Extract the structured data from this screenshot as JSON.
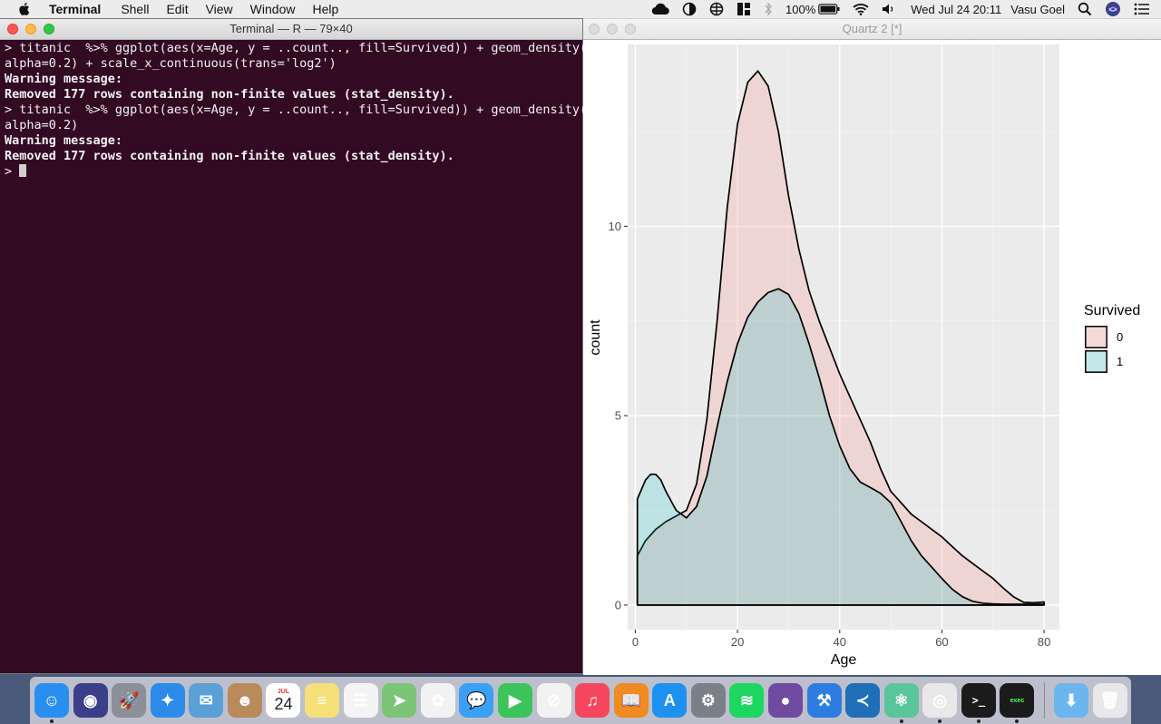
{
  "menubar": {
    "app": "Terminal",
    "items": [
      "Shell",
      "Edit",
      "View",
      "Window",
      "Help"
    ],
    "battery": "100%",
    "datetime": "Wed Jul 24  20:11",
    "user": "Vasu Goel"
  },
  "terminal": {
    "title": "Terminal — R — 79×40",
    "lines": [
      {
        "text": "> titanic  %>% ggplot(aes(x=Age, y = ..count.., fill=Survived)) + geom_density(",
        "bold": false
      },
      {
        "text": "alpha=0.2) + scale_x_continuous(trans='log2')",
        "bold": false
      },
      {
        "text": "Warning message:",
        "bold": true
      },
      {
        "text": "Removed 177 rows containing non-finite values (stat_density).",
        "bold": true
      },
      {
        "text": "> titanic  %>% ggplot(aes(x=Age, y = ..count.., fill=Survived)) + geom_density(",
        "bold": false
      },
      {
        "text": "alpha=0.2)",
        "bold": false
      },
      {
        "text": "Warning message:",
        "bold": true
      },
      {
        "text": "Removed 177 rows containing non-finite values (stat_density).",
        "bold": true
      },
      {
        "text": "> ",
        "bold": false
      }
    ]
  },
  "quartz": {
    "title": "Quartz 2 [*]"
  },
  "chart_data": {
    "type": "area",
    "xlabel": "Age",
    "ylabel": "count",
    "xlim": [
      -1.5,
      83
    ],
    "ylim": [
      -0.65,
      14.8
    ],
    "xticks": [
      0,
      20,
      40,
      60,
      80
    ],
    "yticks": [
      0,
      5,
      10
    ],
    "grid": true,
    "legend_title": "Survived",
    "legend_position": "right",
    "series": [
      {
        "name": "0",
        "color": "#f8766d",
        "x": [
          0.4,
          2,
          4,
          6,
          8,
          10,
          12,
          14,
          16,
          18,
          20,
          22,
          24,
          26,
          28,
          30,
          32,
          34,
          36,
          38,
          40,
          42,
          44,
          46,
          48,
          50,
          52,
          54,
          56,
          58,
          60,
          62,
          64,
          66,
          68,
          70,
          72,
          74,
          76,
          78,
          80
        ],
        "y": [
          1.3,
          1.7,
          2.0,
          2.2,
          2.35,
          2.5,
          3.2,
          4.9,
          7.5,
          10.5,
          12.7,
          13.8,
          14.1,
          13.7,
          12.5,
          10.8,
          9.4,
          8.3,
          7.5,
          6.8,
          6.1,
          5.5,
          4.9,
          4.3,
          3.6,
          3.0,
          2.7,
          2.4,
          2.2,
          2.0,
          1.8,
          1.55,
          1.3,
          1.1,
          0.9,
          0.7,
          0.45,
          0.22,
          0.07,
          0.06,
          0.08
        ]
      },
      {
        "name": "1",
        "color": "#00bfc4",
        "x": [
          0.4,
          2,
          3,
          4,
          5,
          6,
          8,
          10,
          12,
          14,
          16,
          18,
          20,
          22,
          24,
          26,
          28,
          30,
          32,
          34,
          36,
          38,
          40,
          42,
          44,
          46,
          48,
          50,
          52,
          54,
          56,
          58,
          60,
          62,
          64,
          66,
          68,
          70,
          72,
          74,
          76,
          78,
          80
        ],
        "y": [
          2.8,
          3.3,
          3.45,
          3.45,
          3.3,
          3.0,
          2.5,
          2.3,
          2.6,
          3.4,
          4.7,
          5.9,
          6.9,
          7.6,
          8.0,
          8.25,
          8.35,
          8.2,
          7.7,
          6.9,
          6.0,
          5.0,
          4.2,
          3.6,
          3.25,
          3.1,
          2.95,
          2.7,
          2.2,
          1.7,
          1.3,
          1.0,
          0.7,
          0.42,
          0.22,
          0.1,
          0.05,
          0.03,
          0.02,
          0.02,
          0.02,
          0.02,
          0.02
        ]
      }
    ]
  },
  "dock": {
    "apps": [
      {
        "name": "finder-icon",
        "bg": "#2a8ef0",
        "glyph": "☺",
        "running": true
      },
      {
        "name": "siri-icon",
        "bg": "#3b3f8a",
        "glyph": "◉",
        "running": false
      },
      {
        "name": "launchpad-icon",
        "bg": "#8a8f98",
        "glyph": "🚀",
        "running": false
      },
      {
        "name": "safari-icon",
        "bg": "#2c8be8",
        "glyph": "✦",
        "running": false
      },
      {
        "name": "mail-icon",
        "bg": "#5a9fd6",
        "glyph": "✉",
        "running": false
      },
      {
        "name": "contacts-icon",
        "bg": "#b98a5a",
        "glyph": "☻",
        "running": false
      },
      {
        "name": "calendar-icon",
        "bg": "#ffffff",
        "glyph": "24",
        "running": false
      },
      {
        "name": "notes-icon",
        "bg": "#f5e07a",
        "glyph": "≡",
        "running": false
      },
      {
        "name": "reminders-icon",
        "bg": "#f4f4f4",
        "glyph": "☰",
        "running": false
      },
      {
        "name": "maps-icon",
        "bg": "#7cc576",
        "glyph": "➤",
        "running": false
      },
      {
        "name": "photos-icon",
        "bg": "#f2f2f2",
        "glyph": "✿",
        "running": false
      },
      {
        "name": "messages-icon",
        "bg": "#3aa0f5",
        "glyph": "💬",
        "running": false
      },
      {
        "name": "facetime-icon",
        "bg": "#3bc45a",
        "glyph": "▶",
        "running": false
      },
      {
        "name": "news-icon",
        "bg": "#f2f2f2",
        "glyph": "⊘",
        "running": false
      },
      {
        "name": "music-icon",
        "bg": "#f6465e",
        "glyph": "♫",
        "running": false
      },
      {
        "name": "books-icon",
        "bg": "#f08a22",
        "glyph": "📖",
        "running": false
      },
      {
        "name": "app-store-icon",
        "bg": "#1e90f0",
        "glyph": "A",
        "running": false
      },
      {
        "name": "system-preferences-icon",
        "bg": "#7a7f88",
        "glyph": "⚙",
        "running": false
      },
      {
        "name": "spotify-icon",
        "bg": "#1ed760",
        "glyph": "≋",
        "running": false
      },
      {
        "name": "github-icon",
        "bg": "#6e4aa0",
        "glyph": "●",
        "running": false
      },
      {
        "name": "xcode-icon",
        "bg": "#2d7de0",
        "glyph": "⚒",
        "running": false
      },
      {
        "name": "vscode-icon",
        "bg": "#1f6fb8",
        "glyph": "≺",
        "running": false
      },
      {
        "name": "atom-icon",
        "bg": "#5ac49a",
        "glyph": "⚛",
        "running": true
      },
      {
        "name": "chrome-icon",
        "bg": "#e8e8e8",
        "glyph": "◎",
        "running": true
      },
      {
        "name": "terminal-icon",
        "bg": "#1b1b1b",
        "glyph": ">_",
        "running": true
      },
      {
        "name": "exec-icon",
        "bg": "#1b1b1b",
        "glyph": "exec",
        "running": true
      }
    ],
    "right": [
      {
        "name": "downloads-folder-icon",
        "bg": "#6bb6ef",
        "glyph": "⬇",
        "running": false
      },
      {
        "name": "trash-icon",
        "bg": "#e8e8ea",
        "glyph": "🗑",
        "running": false
      }
    ]
  }
}
